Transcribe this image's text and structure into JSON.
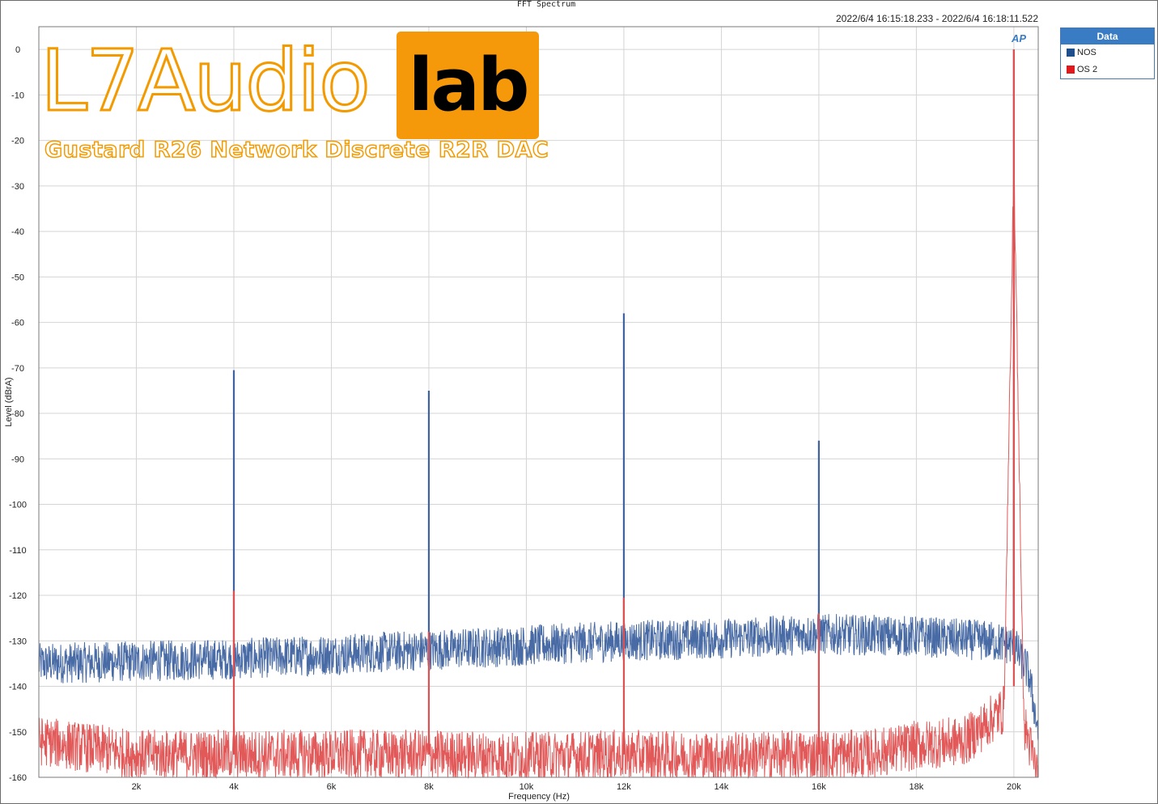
{
  "app": {
    "title": "FFT Spectrum",
    "timestamp": "2022/6/4 16:15:18.233 - 2022/6/4 16:18:11.522",
    "ap_logo": "AP"
  },
  "legend": {
    "header": "Data",
    "items": [
      {
        "label": "NOS",
        "color": "#1f4e8c"
      },
      {
        "label": "OS 2",
        "color": "#e0191c"
      }
    ]
  },
  "watermark": {
    "brand_left": "L7Audio",
    "brand_box": "lab",
    "subtitle": "Gustard R26 Network Discrete R2R DAC",
    "brand_color": "#f39a00"
  },
  "chart_data": {
    "type": "line",
    "xlabel": "Frequency (Hz)",
    "ylabel": "Level (dBrA)",
    "xlim": [
      0,
      20500
    ],
    "ylim": [
      -160,
      5
    ],
    "x_ticks": [
      2000,
      4000,
      6000,
      8000,
      10000,
      12000,
      14000,
      16000,
      18000,
      20000
    ],
    "x_tick_labels": [
      "2k",
      "4k",
      "6k",
      "8k",
      "10k",
      "12k",
      "14k",
      "16k",
      "18k",
      "20k"
    ],
    "y_ticks": [
      0,
      -10,
      -20,
      -30,
      -40,
      -50,
      -60,
      -70,
      -80,
      -90,
      -100,
      -110,
      -120,
      -130,
      -140,
      -150,
      -160
    ],
    "y_tick_labels": [
      "0",
      "-10",
      "-20",
      "-30",
      "-40",
      "-50",
      "-60",
      "-70",
      "-80",
      "-90",
      "-100",
      "-110",
      "-120",
      "-130",
      "-140",
      "-150",
      "-160"
    ],
    "grid": true,
    "legend_position": "right-top",
    "series": [
      {
        "name": "NOS",
        "color": "#3f63a0",
        "noise_floor": [
          [
            0,
            -135
          ],
          [
            2000,
            -134.5
          ],
          [
            4000,
            -134
          ],
          [
            6000,
            -133
          ],
          [
            8000,
            -132
          ],
          [
            10000,
            -131
          ],
          [
            12000,
            -130
          ],
          [
            14000,
            -129.5
          ],
          [
            16000,
            -128.5
          ],
          [
            18000,
            -129
          ],
          [
            19500,
            -130
          ],
          [
            20000,
            -131
          ],
          [
            20300,
            -137
          ],
          [
            20500,
            -150
          ]
        ],
        "peaks": [
          [
            4000,
            -70.5
          ],
          [
            8000,
            -75
          ],
          [
            12000,
            -58
          ],
          [
            16000,
            -86
          ],
          [
            20000,
            0
          ]
        ]
      },
      {
        "name": "OS 2",
        "color": "#e05050",
        "noise_floor": [
          [
            0,
            -152
          ],
          [
            2000,
            -155
          ],
          [
            4000,
            -155
          ],
          [
            6000,
            -155
          ],
          [
            8000,
            -155
          ],
          [
            10000,
            -155.5
          ],
          [
            12000,
            -155
          ],
          [
            14000,
            -155.5
          ],
          [
            16000,
            -155
          ],
          [
            17000,
            -155
          ],
          [
            18000,
            -153
          ],
          [
            19000,
            -152
          ],
          [
            19800,
            -145
          ],
          [
            20000,
            -140
          ],
          [
            20300,
            -152
          ],
          [
            20500,
            -160
          ]
        ],
        "peaks": [
          [
            4000,
            -119
          ],
          [
            8000,
            -128
          ],
          [
            12000,
            -120.5
          ],
          [
            16000,
            -124
          ],
          [
            20000,
            0
          ]
        ]
      }
    ]
  }
}
